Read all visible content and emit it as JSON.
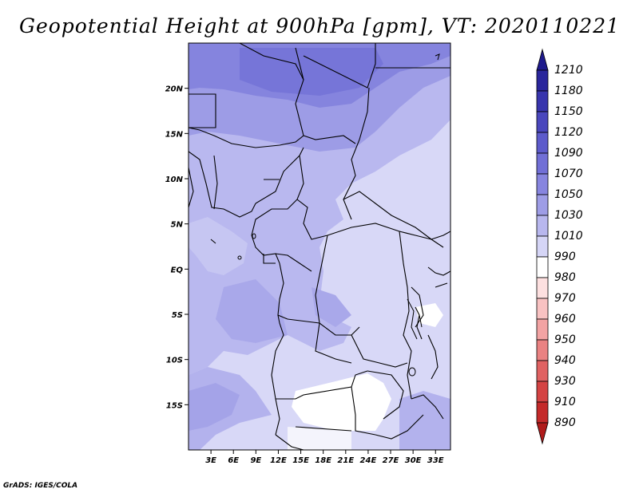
{
  "title": "Geopotential Height at 900hPa [gpm], VT: 2020110221",
  "credit": "GrADS: IGES/COLA",
  "map": {
    "lat_labels": [
      "20N",
      "15N",
      "10N",
      "5N",
      "EQ",
      "5S",
      "10S",
      "15S"
    ],
    "lat_values": [
      20,
      15,
      10,
      5,
      0,
      -5,
      -10,
      -15
    ],
    "lon_labels": [
      "3E",
      "6E",
      "9E",
      "12E",
      "15E",
      "18E",
      "21E",
      "24E",
      "27E",
      "30E",
      "33E"
    ],
    "lon_values": [
      3,
      6,
      9,
      12,
      15,
      18,
      21,
      24,
      27,
      30,
      33
    ],
    "lon_range": [
      0,
      35
    ],
    "lat_range": [
      -20,
      25
    ]
  },
  "colorbar": {
    "labels": [
      "1210",
      "1180",
      "1150",
      "1120",
      "1090",
      "1070",
      "1050",
      "1030",
      "1010",
      "990",
      "980",
      "970",
      "960",
      "950",
      "940",
      "930",
      "910",
      "890"
    ],
    "colors": [
      "#1e1a8c",
      "#2a269c",
      "#3835ad",
      "#4a47bd",
      "#5d5bcb",
      "#716fd6",
      "#8785df",
      "#9e9de6",
      "#b8b7ee",
      "#d5d5f6",
      "#ffffff",
      "#fde0e0",
      "#f8c2c2",
      "#f2a3a3",
      "#ea8282",
      "#e06262",
      "#d44343",
      "#c42a2a",
      "#b01b1b"
    ]
  }
}
